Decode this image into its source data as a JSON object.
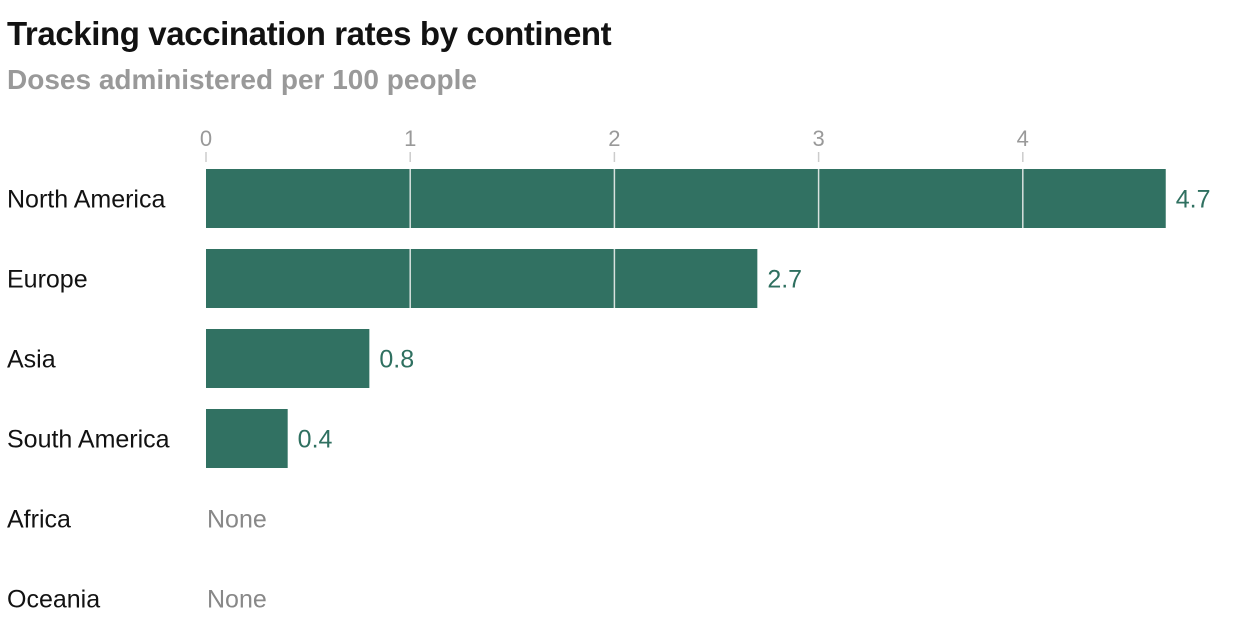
{
  "chart_data": {
    "type": "bar",
    "orientation": "horizontal",
    "title": "Tracking vaccination rates by continent",
    "subtitle": "Doses administered per 100 people",
    "categories": [
      "North America",
      "Europe",
      "Asia",
      "South America",
      "Africa",
      "Oceania"
    ],
    "values": [
      4.7,
      2.7,
      0.8,
      0.4,
      null,
      null
    ],
    "value_labels": [
      "4.7",
      "2.7",
      "0.8",
      "0.4",
      "None",
      "None"
    ],
    "x_ticks": [
      0,
      1,
      2,
      3,
      4
    ],
    "xlim": [
      0,
      4.7
    ],
    "grid": true,
    "bar_color": "#317162",
    "value_label_color": "#2f7060",
    "none_label_color": "#888888"
  }
}
